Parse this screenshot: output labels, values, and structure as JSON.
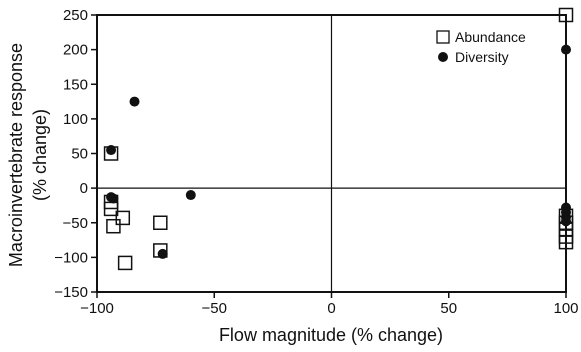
{
  "chart_data": {
    "type": "scatter",
    "xlabel": "Flow magnitude (% change)",
    "ylabel_lines": [
      "Macroinvertebrate response",
      "(% change)"
    ],
    "xlim": [
      -100,
      100
    ],
    "ylim": [
      -150,
      250
    ],
    "xticks": [
      -100,
      -50,
      0,
      50,
      100
    ],
    "yticks": [
      -150,
      -100,
      -50,
      0,
      50,
      100,
      150,
      200,
      250
    ],
    "xtick_labels": [
      "−100",
      "−50",
      "0",
      "50",
      "100"
    ],
    "ytick_labels": [
      "−150",
      "−100",
      "−50",
      "0",
      "50",
      "100",
      "150",
      "200",
      "250"
    ],
    "reference_lines": {
      "x": 0,
      "y": 0
    },
    "grid": false,
    "legend": "top-right",
    "series": [
      {
        "name": "Abundance",
        "marker": "open-square",
        "color": "#111111",
        "points": [
          {
            "x": -94,
            "y": 50
          },
          {
            "x": -94,
            "y": -20
          },
          {
            "x": -94,
            "y": -30
          },
          {
            "x": -93,
            "y": -55
          },
          {
            "x": -89,
            "y": -43
          },
          {
            "x": -88,
            "y": -108
          },
          {
            "x": -73,
            "y": -50
          },
          {
            "x": -73,
            "y": -90
          },
          {
            "x": 100,
            "y": 250
          },
          {
            "x": 100,
            "y": -40
          },
          {
            "x": 100,
            "y": -50
          },
          {
            "x": 100,
            "y": -60
          },
          {
            "x": 100,
            "y": -70
          },
          {
            "x": 100,
            "y": -78
          }
        ]
      },
      {
        "name": "Diversity",
        "marker": "filled-circle",
        "color": "#111111",
        "points": [
          {
            "x": -94,
            "y": 55
          },
          {
            "x": -94,
            "y": -13
          },
          {
            "x": -93,
            "y": -15
          },
          {
            "x": -84,
            "y": 125
          },
          {
            "x": -60,
            "y": -10
          },
          {
            "x": -72,
            "y": -95
          },
          {
            "x": 100,
            "y": 200
          },
          {
            "x": 100,
            "y": -28
          },
          {
            "x": 100,
            "y": -35
          },
          {
            "x": 100,
            "y": -42
          },
          {
            "x": 100,
            "y": -48
          }
        ]
      }
    ]
  }
}
